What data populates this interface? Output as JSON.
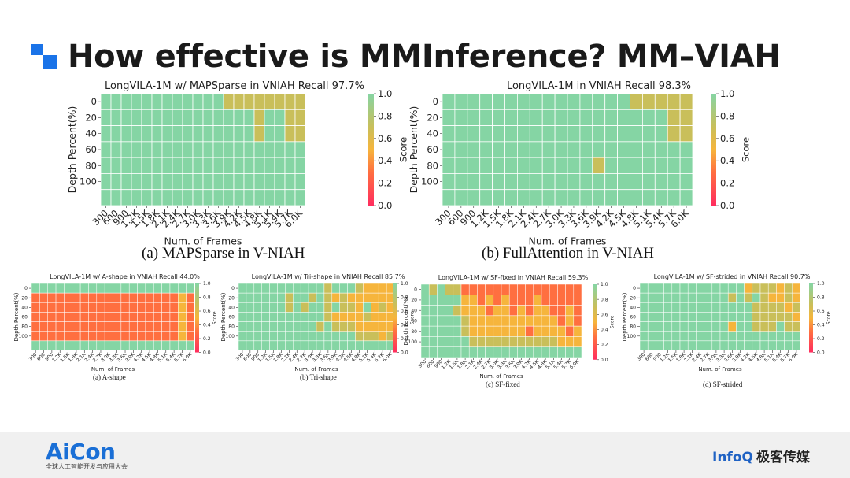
{
  "slide": {
    "title": "How effective is MMInference? MM–VIAH"
  },
  "captions": {
    "a": "(a) MAPSparse in V-NIAH",
    "b": "(b) FullAttention in V-NIAH",
    "small_a": "(a) A-shape",
    "small_b": "(b) Tri-shape",
    "small_c": "(c) SF-fixed",
    "small_d": "(d) SF-strided"
  },
  "footer": {
    "aicon": "AiCon",
    "aicon_sub": "全球人工智能开发与应用大会",
    "infoq": "InfoQ",
    "infoq_cn": "极客传媒"
  },
  "colors": {
    "score_0": "#ff2d5e",
    "score_03": "#ff6f40",
    "score_05": "#f6b53c",
    "score_07": "#c9bf5a",
    "score_1": "#85d5a4"
  },
  "chart_data": [
    {
      "type": "heatmap",
      "title": "LongVILA-1M w/ MAPSparse in VNIAH Recall 97.7%",
      "xlabel": "Num. of Frames",
      "ylabel": "Depth Percent(%)",
      "colorbar_label": "Score",
      "colorbar_ticks": [
        "0.0",
        "0.2",
        "0.4",
        "0.6",
        "0.8",
        "1.0"
      ],
      "x": [
        "300",
        "600",
        "900",
        "1.2K",
        "1.5K",
        "1.8K",
        "2.1K",
        "2.4K",
        "2.7K",
        "3.0K",
        "3.3K",
        "3.6K",
        "3.9K",
        "4.2K",
        "4.5K",
        "4.8K",
        "5.1K",
        "5.4K",
        "5.7K",
        "6.0K"
      ],
      "y_ticks": [
        "0",
        "20",
        "40",
        "60",
        "80",
        "100"
      ],
      "rows": 7,
      "grid": [
        [
          1,
          1,
          1,
          1,
          1,
          1,
          1,
          1,
          1,
          1,
          1,
          1,
          0.7,
          0.7,
          0.7,
          0.7,
          0.7,
          0.7,
          0.7,
          0.7
        ],
        [
          1,
          1,
          1,
          1,
          1,
          1,
          1,
          1,
          1,
          1,
          1,
          1,
          1,
          1,
          1,
          0.7,
          1,
          1,
          0.7,
          0.7
        ],
        [
          1,
          1,
          1,
          1,
          1,
          1,
          1,
          1,
          1,
          1,
          1,
          1,
          1,
          1,
          1,
          0.7,
          1,
          1,
          0.7,
          0.7
        ],
        [
          1,
          1,
          1,
          1,
          1,
          1,
          1,
          1,
          1,
          1,
          1,
          1,
          1,
          1,
          1,
          1,
          1,
          1,
          1,
          1
        ],
        [
          1,
          1,
          1,
          1,
          1,
          1,
          1,
          1,
          1,
          1,
          1,
          1,
          1,
          1,
          1,
          1,
          1,
          1,
          1,
          1
        ],
        [
          1,
          1,
          1,
          1,
          1,
          1,
          1,
          1,
          1,
          1,
          1,
          1,
          1,
          1,
          1,
          1,
          1,
          1,
          1,
          1
        ],
        [
          1,
          1,
          1,
          1,
          1,
          1,
          1,
          1,
          1,
          1,
          1,
          1,
          1,
          1,
          1,
          1,
          1,
          1,
          1,
          1
        ]
      ]
    },
    {
      "type": "heatmap",
      "title": "LongVILA-1M in VNIAH Recall 98.3%",
      "xlabel": "Num. of Frames",
      "ylabel": "Depth Percent(%)",
      "colorbar_label": "Score",
      "colorbar_ticks": [
        "0.0",
        "0.2",
        "0.4",
        "0.6",
        "0.8",
        "1.0"
      ],
      "x": [
        "300",
        "600",
        "900",
        "1.2K",
        "1.5K",
        "1.8K",
        "2.1K",
        "2.4K",
        "2.7K",
        "3.0K",
        "3.3K",
        "3.6K",
        "3.9K",
        "4.2K",
        "4.5K",
        "4.8K",
        "5.1K",
        "5.4K",
        "5.7K",
        "6.0K"
      ],
      "y_ticks": [
        "0",
        "20",
        "40",
        "60",
        "80",
        "100"
      ],
      "rows": 7,
      "grid": [
        [
          1,
          1,
          1,
          1,
          1,
          1,
          1,
          1,
          1,
          1,
          1,
          1,
          1,
          1,
          1,
          0.7,
          0.7,
          0.7,
          0.7,
          0.7
        ],
        [
          1,
          1,
          1,
          1,
          1,
          1,
          1,
          1,
          1,
          1,
          1,
          1,
          1,
          1,
          1,
          1,
          1,
          1,
          0.7,
          0.7
        ],
        [
          1,
          1,
          1,
          1,
          1,
          1,
          1,
          1,
          1,
          1,
          1,
          1,
          1,
          1,
          1,
          1,
          1,
          1,
          0.7,
          0.7
        ],
        [
          1,
          1,
          1,
          1,
          1,
          1,
          1,
          1,
          1,
          1,
          1,
          1,
          1,
          1,
          1,
          1,
          1,
          1,
          1,
          1
        ],
        [
          1,
          1,
          1,
          1,
          1,
          1,
          1,
          1,
          1,
          1,
          1,
          1,
          0.7,
          1,
          1,
          1,
          1,
          1,
          1,
          1
        ],
        [
          1,
          1,
          1,
          1,
          1,
          1,
          1,
          1,
          1,
          1,
          1,
          1,
          1,
          1,
          1,
          1,
          1,
          1,
          1,
          1
        ],
        [
          1,
          1,
          1,
          1,
          1,
          1,
          1,
          1,
          1,
          1,
          1,
          1,
          1,
          1,
          1,
          1,
          1,
          1,
          1,
          1
        ]
      ]
    },
    {
      "type": "heatmap",
      "title": "LongVILA-1M w/ A-shape in VNIAH Recall 44.0%",
      "xlabel": "Num. of Frames",
      "ylabel": "Depth Percent(%)",
      "colorbar_label": "Score",
      "colorbar_ticks": [
        "0.0",
        "0.2",
        "0.4",
        "0.6",
        "0.8",
        "1.0"
      ],
      "x": [
        "300",
        "600",
        "900",
        "1.2K",
        "1.5K",
        "1.8K",
        "2.1K",
        "2.4K",
        "2.7K",
        "3.0K",
        "3.3K",
        "3.6K",
        "3.9K",
        "4.2K",
        "4.5K",
        "4.8K",
        "5.1K",
        "5.4K",
        "5.7K",
        "6.0K"
      ],
      "y_ticks": [
        "0",
        "20",
        "40",
        "60",
        "80",
        "100"
      ],
      "rows": 7,
      "grid": [
        [
          1,
          1,
          1,
          1,
          1,
          1,
          1,
          1,
          1,
          1,
          1,
          1,
          1,
          1,
          1,
          1,
          1,
          1,
          1,
          1
        ],
        [
          0.3,
          0.3,
          0.3,
          0.3,
          0.3,
          0.3,
          0.3,
          0.3,
          0.3,
          0.3,
          0.3,
          0.3,
          0.3,
          0.3,
          0.3,
          0.3,
          0.3,
          0.3,
          0.5,
          0.3
        ],
        [
          0.3,
          0.3,
          0.3,
          0.3,
          0.3,
          0.3,
          0.3,
          0.3,
          0.3,
          0.3,
          0.3,
          0.3,
          0.3,
          0.3,
          0.3,
          0.3,
          0.3,
          0.3,
          0.5,
          0.3
        ],
        [
          0.3,
          0.3,
          0.3,
          0.3,
          0.3,
          0.3,
          0.3,
          0.3,
          0.3,
          0.3,
          0.3,
          0.3,
          0.3,
          0.3,
          0.3,
          0.3,
          0.3,
          0.3,
          0.5,
          0.3
        ],
        [
          0.3,
          0.3,
          0.3,
          0.3,
          0.3,
          0.3,
          0.3,
          0.3,
          0.3,
          0.3,
          0.3,
          0.3,
          0.3,
          0.3,
          0.3,
          0.3,
          0.3,
          0.3,
          0.5,
          0.3
        ],
        [
          0.3,
          0.3,
          0.3,
          0.3,
          0.3,
          0.3,
          0.3,
          0.3,
          0.3,
          0.3,
          0.3,
          0.3,
          0.3,
          0.3,
          0.3,
          0.3,
          0.3,
          0.3,
          0.5,
          0.3
        ],
        [
          1,
          1,
          1,
          1,
          1,
          1,
          1,
          1,
          1,
          1,
          1,
          1,
          1,
          1,
          1,
          1,
          1,
          1,
          1,
          1
        ]
      ]
    },
    {
      "type": "heatmap",
      "title": "LongVILA-1M w/ Tri-shape in VNIAH Recall 85.7%",
      "xlabel": "Num. of Frames",
      "ylabel": "Depth Percent(%)",
      "colorbar_label": "Score",
      "colorbar_ticks": [
        "0.0",
        "0.2",
        "0.4",
        "0.6",
        "0.8",
        "1.0"
      ],
      "x": [
        "300",
        "600",
        "900",
        "1.2K",
        "1.5K",
        "1.8K",
        "2.1K",
        "2.4K",
        "2.7K",
        "3.0K",
        "3.3K",
        "3.6K",
        "3.9K",
        "4.2K",
        "4.5K",
        "4.8K",
        "5.1K",
        "5.4K",
        "5.7K",
        "6.0K"
      ],
      "y_ticks": [
        "0",
        "20",
        "40",
        "60",
        "80",
        "100"
      ],
      "rows": 7,
      "grid": [
        [
          1,
          1,
          1,
          1,
          1,
          1,
          1,
          1,
          1,
          1,
          1,
          0.7,
          1,
          1,
          1,
          0.7,
          0.5,
          0.5,
          0.5,
          0.5
        ],
        [
          1,
          1,
          1,
          1,
          1,
          1,
          0.7,
          1,
          1,
          0.7,
          1,
          0.7,
          0.5,
          0.7,
          0.5,
          0.5,
          0.5,
          0.5,
          0.5,
          0.5
        ],
        [
          1,
          1,
          1,
          1,
          1,
          1,
          0.7,
          1,
          0.7,
          1,
          1,
          0.7,
          1,
          0.7,
          0.7,
          0.5,
          1,
          0.5,
          0.7,
          0.5
        ],
        [
          1,
          1,
          1,
          1,
          1,
          1,
          1,
          1,
          1,
          1,
          1,
          0.7,
          0.5,
          0.5,
          0.5,
          0.5,
          0.7,
          0.5,
          0.5,
          0.5
        ],
        [
          1,
          1,
          1,
          1,
          1,
          1,
          1,
          1,
          1,
          1,
          0.7,
          1,
          0.7,
          0.7,
          0.7,
          0.5,
          0.5,
          0.5,
          0.5,
          0.5
        ],
        [
          1,
          1,
          1,
          1,
          1,
          1,
          1,
          1,
          1,
          1,
          1,
          1,
          1,
          1,
          1,
          0.7,
          0.7,
          0.7,
          0.5,
          0.7
        ],
        [
          1,
          1,
          1,
          1,
          1,
          1,
          1,
          1,
          1,
          1,
          1,
          1,
          1,
          1,
          1,
          1,
          1,
          1,
          1,
          1
        ]
      ]
    },
    {
      "type": "heatmap",
      "title": "LongVILA-1M w/ SF-fixed in VNIAH Recall 59.3%",
      "xlabel": "Num. of Frames",
      "ylabel": "Depth Percent(%)",
      "colorbar_label": "Score",
      "colorbar_ticks": [
        "0.0",
        "0.2",
        "0.4",
        "0.6",
        "0.8",
        "1.0"
      ],
      "x": [
        "300",
        "600",
        "900",
        "1.2K",
        "1.5K",
        "1.8K",
        "2.1K",
        "2.4K",
        "2.7K",
        "3.0K",
        "3.3K",
        "3.6K",
        "3.9K",
        "4.2K",
        "4.5K",
        "4.8K",
        "5.1K",
        "5.4K",
        "5.7K",
        "6.0K"
      ],
      "y_ticks": [
        "0",
        "20",
        "40",
        "60",
        "80",
        "100"
      ],
      "rows": 7,
      "grid": [
        [
          1,
          0.7,
          1,
          0.7,
          0.7,
          0.3,
          0.3,
          0.3,
          0.3,
          0.3,
          0.3,
          0.3,
          0.3,
          0.3,
          0.3,
          0.3,
          0.3,
          0.3,
          0.3,
          0.3
        ],
        [
          1,
          1,
          1,
          1,
          1,
          0.5,
          0.5,
          0.3,
          0.5,
          0.3,
          0.5,
          0.3,
          0.3,
          0.3,
          0.5,
          0.3,
          0.3,
          0.3,
          0.3,
          0.3
        ],
        [
          1,
          1,
          1,
          1,
          0.7,
          0.5,
          0.5,
          0.5,
          0.3,
          0.5,
          0.5,
          0.3,
          0.5,
          0.3,
          0.5,
          0.5,
          0.3,
          0.3,
          0.5,
          0.3
        ],
        [
          1,
          1,
          1,
          1,
          1,
          0.7,
          0.5,
          0.5,
          0.5,
          0.5,
          0.5,
          0.5,
          0.5,
          0.5,
          0.5,
          0.5,
          0.5,
          0.3,
          0.5,
          0.3
        ],
        [
          1,
          1,
          1,
          1,
          1,
          0.7,
          0.5,
          0.5,
          0.5,
          0.5,
          0.5,
          0.5,
          0.5,
          0.3,
          0.5,
          0.5,
          0.5,
          0.5,
          0.3,
          0.5
        ],
        [
          1,
          1,
          1,
          1,
          1,
          1,
          0.7,
          0.7,
          0.7,
          0.7,
          0.7,
          0.7,
          0.7,
          0.7,
          0.7,
          0.7,
          0.7,
          0.5,
          0.5,
          0.5
        ],
        [
          1,
          1,
          1,
          1,
          1,
          1,
          1,
          1,
          1,
          1,
          1,
          1,
          1,
          1,
          1,
          1,
          1,
          1,
          1,
          1
        ]
      ]
    },
    {
      "type": "heatmap",
      "title": "LongVILA-1M w/ SF-strided in VNIAH Recall 90.7%",
      "xlabel": "Num. of Frames",
      "ylabel": "Depth Percent(%)",
      "colorbar_label": "Score",
      "colorbar_ticks": [
        "0.0",
        "0.2",
        "0.4",
        "0.6",
        "0.8",
        "1.0"
      ],
      "x": [
        "300",
        "600",
        "900",
        "1.2K",
        "1.5K",
        "1.8K",
        "2.1K",
        "2.4K",
        "2.7K",
        "3.0K",
        "3.3K",
        "3.6K",
        "3.9K",
        "4.2K",
        "4.5K",
        "4.8K",
        "5.1K",
        "5.4K",
        "5.7K",
        "6.0K"
      ],
      "y_ticks": [
        "0",
        "20",
        "40",
        "60",
        "80",
        "100"
      ],
      "rows": 7,
      "grid": [
        [
          1,
          1,
          1,
          1,
          1,
          1,
          1,
          1,
          1,
          1,
          1,
          1,
          1,
          0.5,
          0.7,
          0.7,
          0.7,
          0.5,
          0.7,
          0.5
        ],
        [
          1,
          1,
          1,
          1,
          1,
          1,
          1,
          1,
          1,
          1,
          1,
          0.7,
          1,
          0.7,
          1,
          0.7,
          0.5,
          0.5,
          0.7,
          0.5
        ],
        [
          1,
          1,
          1,
          1,
          1,
          1,
          1,
          1,
          1,
          1,
          1,
          1,
          1,
          1,
          0.7,
          0.7,
          0.7,
          0.7,
          0.5,
          0.7
        ],
        [
          1,
          1,
          1,
          1,
          1,
          1,
          1,
          1,
          1,
          1,
          1,
          1,
          1,
          1,
          0.7,
          0.7,
          0.7,
          0.7,
          0.7,
          0.5
        ],
        [
          1,
          1,
          1,
          1,
          1,
          1,
          1,
          1,
          1,
          1,
          1,
          0.5,
          1,
          1,
          0.7,
          0.7,
          0.7,
          1,
          0.7,
          0.7
        ],
        [
          1,
          1,
          1,
          1,
          1,
          1,
          1,
          1,
          1,
          1,
          1,
          1,
          1,
          1,
          1,
          1,
          1,
          1,
          1,
          1
        ],
        [
          1,
          1,
          1,
          1,
          1,
          1,
          1,
          1,
          1,
          1,
          1,
          1,
          1,
          1,
          1,
          1,
          1,
          1,
          1,
          1
        ]
      ]
    }
  ]
}
